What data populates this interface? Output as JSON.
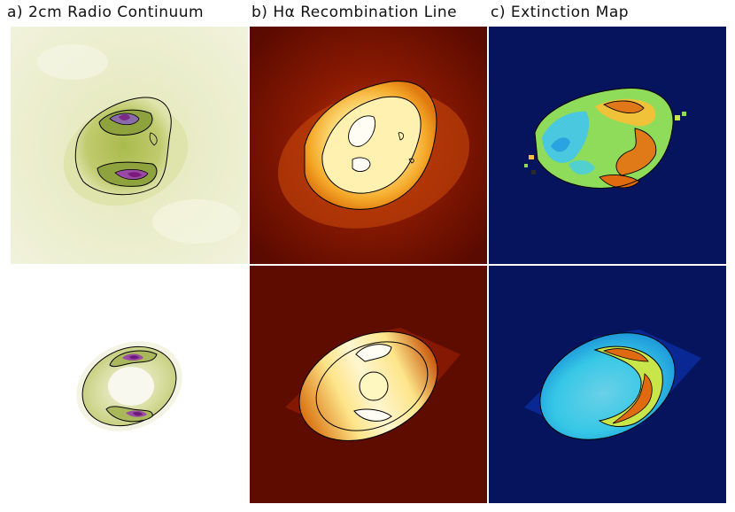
{
  "titles": {
    "a": "a) 2cm Radio Continuum",
    "b": "b) Hα Recombination Line",
    "c": "c) Extinction Map"
  },
  "colors": {
    "radio_background": "#eef0d6",
    "radio_mid": "#b8c463",
    "radio_peak": "#7a3b8c",
    "halpha_background": "#5e0b00",
    "halpha_mid": "#e07a10",
    "halpha_peak": "#fff6c8",
    "extinction_background": "#06145e",
    "extinction_low": "#36c8e6",
    "extinction_mid": "#c8e64a",
    "extinction_high": "#e06a10",
    "contour": "#000000"
  },
  "panels": [
    {
      "row": "observed",
      "column": "a",
      "content": "radio continuum image"
    },
    {
      "row": "observed",
      "column": "b",
      "content": "H-alpha image"
    },
    {
      "row": "observed",
      "column": "c",
      "content": "extinction image"
    },
    {
      "row": "model",
      "column": "a",
      "content": "radio continuum model"
    },
    {
      "row": "model",
      "column": "b",
      "content": "H-alpha model"
    },
    {
      "row": "model",
      "column": "c",
      "content": "extinction model"
    }
  ]
}
